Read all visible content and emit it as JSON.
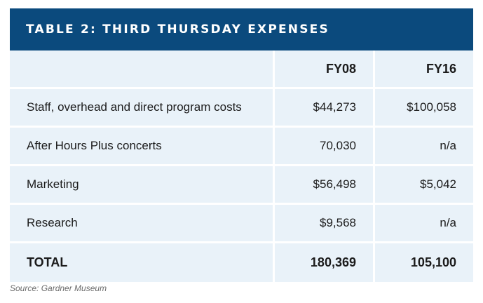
{
  "title": "TABLE 2: THIRD THURSDAY EXPENSES",
  "table": {
    "columns": [
      "",
      "FY08",
      "FY16"
    ],
    "rows": [
      {
        "label": "Staff, overhead and direct program costs",
        "fy08": "$44,273",
        "fy16": "$100,058"
      },
      {
        "label": "After Hours Plus concerts",
        "fy08": "70,030",
        "fy16": "n/a"
      },
      {
        "label": "Marketing",
        "fy08": "$56,498",
        "fy16": "$5,042"
      },
      {
        "label": "Research",
        "fy08": "$9,568",
        "fy16": "n/a"
      }
    ],
    "total": {
      "label": "TOTAL",
      "fy08": "180,369",
      "fy16": "105,100"
    }
  },
  "source": "Source: Gardner Museum",
  "colors": {
    "header_bg": "#0b4a7d",
    "cell_bg": "#e9f2f9"
  }
}
